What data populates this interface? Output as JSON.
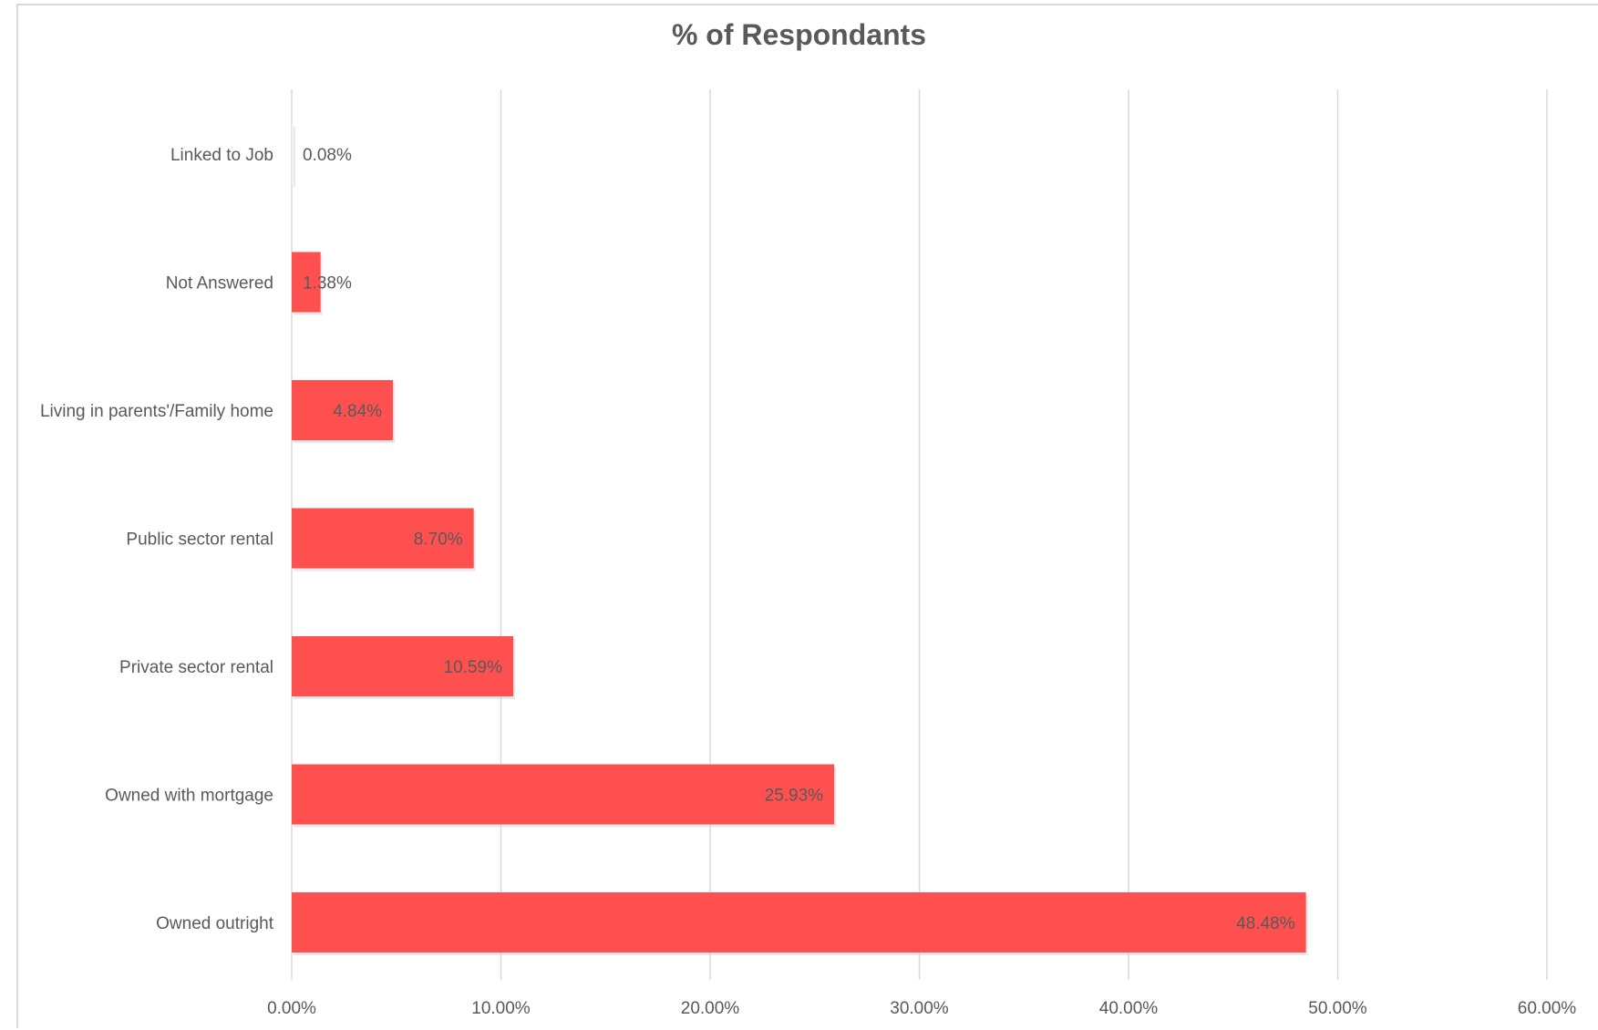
{
  "chart_data": {
    "type": "bar",
    "orientation": "horizontal",
    "title": "% of Respondants",
    "xlabel": "",
    "ylabel": "",
    "categories": [
      "Linked to Job",
      "Not Answered",
      "Living in parents'/Family home",
      "Public sector rental",
      "Private sector rental",
      "Owned with mortgage",
      "Owned outright"
    ],
    "values": [
      0.08,
      1.38,
      4.84,
      8.7,
      10.59,
      25.93,
      48.48
    ],
    "data_labels": [
      "0.08%",
      "1.38%",
      "4.84%",
      "8.70%",
      "10.59%",
      "25.93%",
      "48.48%"
    ],
    "xlim": [
      0,
      60
    ],
    "ticks": [
      0,
      10,
      20,
      30,
      40,
      50,
      60
    ],
    "tick_labels": [
      "0.00%",
      "10.00%",
      "20.00%",
      "30.00%",
      "40.00%",
      "50.00%",
      "60.00%"
    ],
    "grid": true,
    "legend": "none",
    "bar_color": "#FF5050",
    "grid_color": "#d9d9d9",
    "text_color": "#595959"
  }
}
